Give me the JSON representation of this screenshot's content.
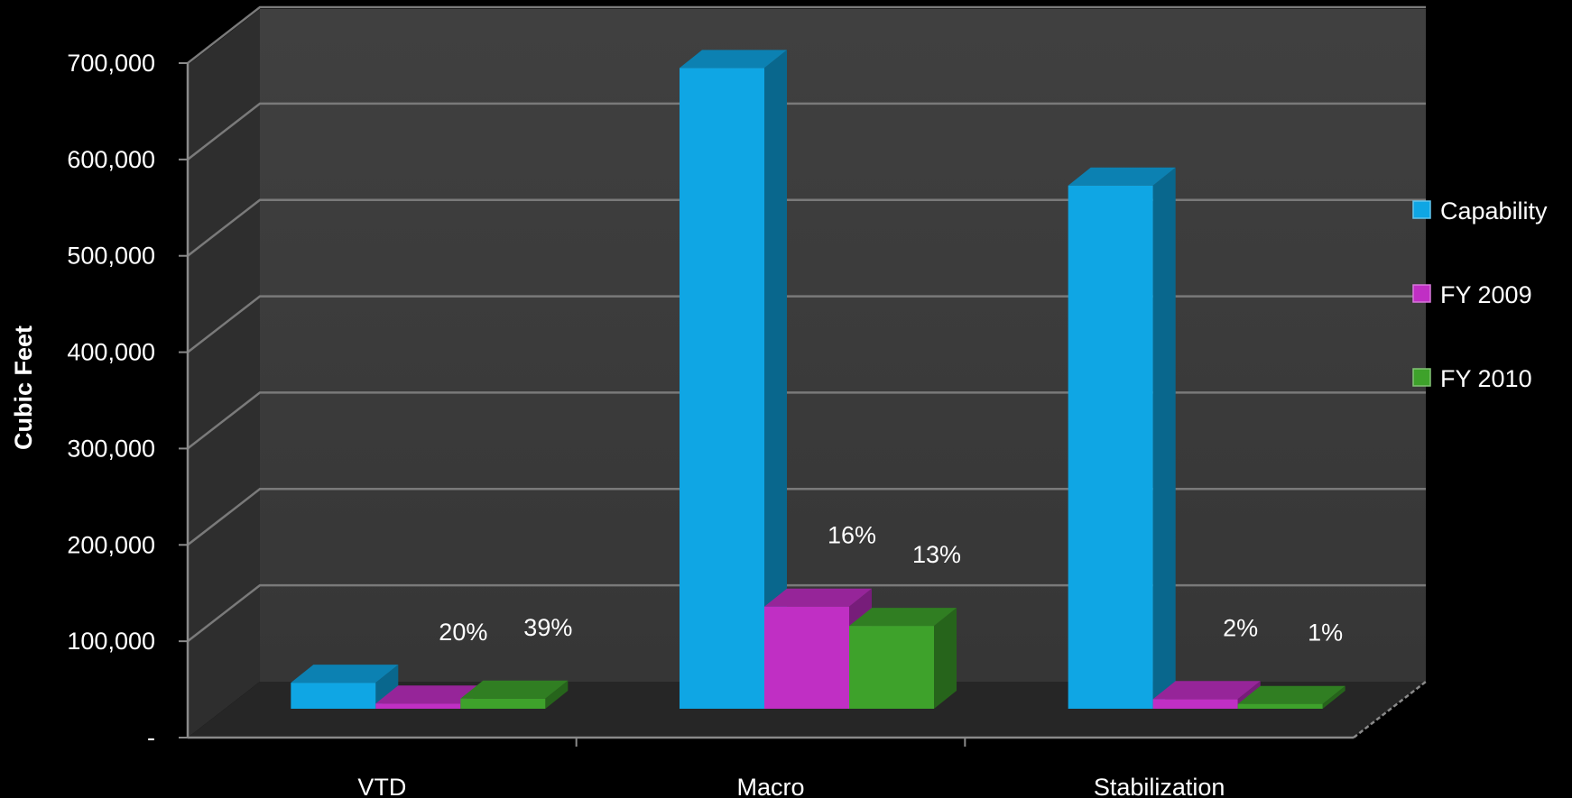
{
  "chart_data": {
    "type": "bar",
    "categories": [
      "VTD",
      "Macro",
      "Stabilization"
    ],
    "series": [
      {
        "name": "Capability",
        "values": [
          27000,
          665000,
          543000
        ],
        "color": "#0fa6e4"
      },
      {
        "name": "FY 2009",
        "values": [
          5400,
          106000,
          10000
        ],
        "color": "#c02fc4"
      },
      {
        "name": "FY 2010",
        "values": [
          10500,
          86000,
          5000
        ],
        "color": "#3ea22b"
      }
    ],
    "data_labels": [
      {
        "category": "VTD",
        "series": "FY 2009",
        "text": "20%"
      },
      {
        "category": "VTD",
        "series": "FY 2010",
        "text": "39%"
      },
      {
        "category": "Macro",
        "series": "FY 2009",
        "text": "16%"
      },
      {
        "category": "Macro",
        "series": "FY 2010",
        "text": "13%"
      },
      {
        "category": "Stabilization",
        "series": "FY 2009",
        "text": "2%"
      },
      {
        "category": "Stabilization",
        "series": "FY 2010",
        "text": "1%"
      }
    ],
    "ylabel": "Cubic Feet",
    "xlabel": "",
    "title": "",
    "ylim": [
      0,
      700000
    ],
    "yticks": [
      0,
      100000,
      200000,
      300000,
      400000,
      500000,
      600000,
      700000
    ],
    "ytick_labels": [
      "-",
      "100,000",
      "200,000",
      "300,000",
      "400,000",
      "500,000",
      "600,000",
      "700,000"
    ],
    "grid": true,
    "legend_position": "right",
    "style": "3d-column",
    "colors": {
      "background": "#000000",
      "back_wall": "#3d3d3d",
      "side_wall": "#2e2e2e",
      "floor": "#262626",
      "gridline": "#7a7a7a",
      "axis": "#8a8a8a",
      "text": "#ffffff"
    }
  }
}
